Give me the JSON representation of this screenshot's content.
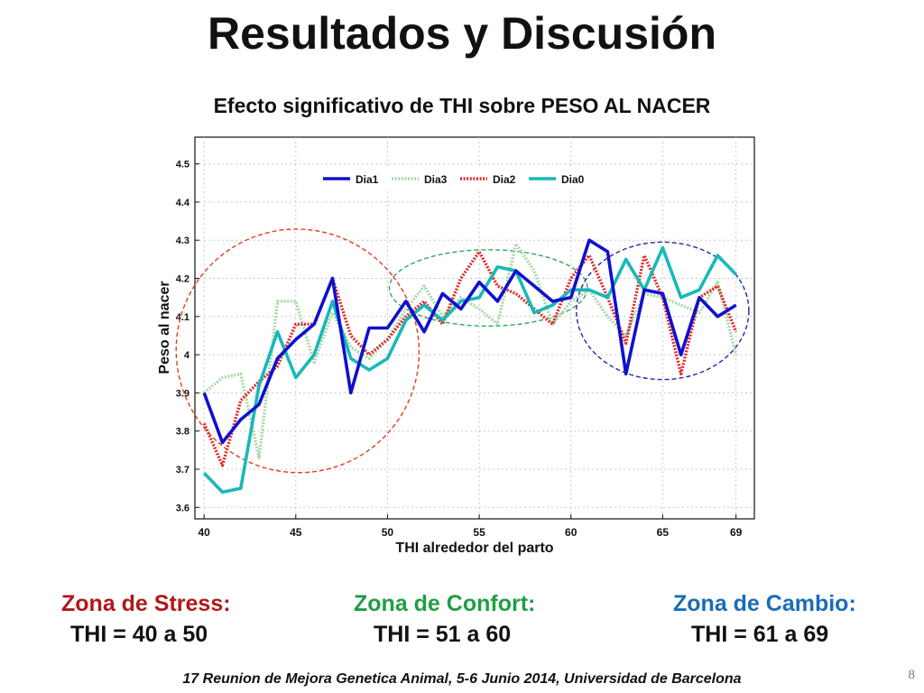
{
  "slide": {
    "title": "Resultados y Discusión",
    "subtitle": "Efecto  significativo de THI sobre PESO AL NACER",
    "footer": "17 Reunion de Mejora Genetica Animal, 5-6 Junio 2014, Universidad de Barcelona",
    "page_number": "8"
  },
  "zones": [
    {
      "name": "Zona de Stress:",
      "range": "THI = 40 a 50",
      "color": "#b01818"
    },
    {
      "name": "Zona de Confort:",
      "range": "THI = 51 a 60",
      "color": "#1f9e44"
    },
    {
      "name": "Zona de Cambio:",
      "range": "THI = 61 a 69",
      "color": "#1a6cb8"
    }
  ],
  "chart_data": {
    "type": "line",
    "xlabel": "THI alrededor del parto",
    "ylabel": "Peso al nacer",
    "xlim": [
      39.5,
      70
    ],
    "ylim": [
      3.57,
      4.57
    ],
    "x_ticks": [
      40,
      45,
      50,
      55,
      60,
      65,
      69
    ],
    "y_ticks": [
      3.6,
      3.7,
      3.8,
      3.9,
      4,
      4.1,
      4.2,
      4.3,
      4.4,
      4.5
    ],
    "y_tick_labels": [
      "3.6",
      "3.7",
      "3.8",
      "3.9",
      "4",
      "4.1",
      "4.2",
      "4.3",
      "4.4",
      "4.5"
    ],
    "grid": true,
    "legend_position": "top",
    "x": [
      40,
      41,
      42,
      43,
      44,
      45,
      46,
      47,
      48,
      49,
      50,
      51,
      52,
      53,
      54,
      55,
      56,
      57,
      58,
      59,
      60,
      61,
      62,
      63,
      64,
      65,
      66,
      67,
      68,
      69
    ],
    "series": [
      {
        "name": "Dia1",
        "color": "#1010cc",
        "style": "solid",
        "values": [
          3.9,
          3.77,
          3.83,
          3.87,
          3.99,
          4.04,
          4.08,
          4.2,
          3.9,
          4.07,
          4.07,
          4.14,
          4.06,
          4.16,
          4.12,
          4.19,
          4.14,
          4.22,
          4.18,
          4.14,
          4.15,
          4.3,
          4.27,
          3.95,
          4.17,
          4.16,
          4.0,
          4.15,
          4.1,
          4.13
        ]
      },
      {
        "name": "Dia3",
        "color": "#a9d8a9",
        "style": "dotted",
        "values": [
          3.9,
          3.94,
          3.95,
          3.73,
          4.14,
          4.14,
          3.98,
          4.11,
          4.02,
          3.99,
          4.04,
          4.12,
          4.18,
          4.1,
          4.15,
          4.12,
          4.08,
          4.29,
          4.22,
          4.08,
          4.14,
          4.17,
          4.1,
          4.05,
          4.16,
          4.15,
          4.13,
          4.11,
          4.19,
          4.0
        ]
      },
      {
        "name": "Dia2",
        "color": "#e02828",
        "style": "dotted",
        "values": [
          3.82,
          3.71,
          3.88,
          3.93,
          3.97,
          4.08,
          4.08,
          4.2,
          4.05,
          4.0,
          4.04,
          4.1,
          4.14,
          4.08,
          4.2,
          4.27,
          4.18,
          4.16,
          4.12,
          4.08,
          4.2,
          4.26,
          4.15,
          4.03,
          4.26,
          4.15,
          3.95,
          4.15,
          4.18,
          4.06
        ]
      },
      {
        "name": "Dia0",
        "color": "#19b8b8",
        "style": "solid",
        "values": [
          3.69,
          3.64,
          3.65,
          3.92,
          4.06,
          3.94,
          4.0,
          4.14,
          3.99,
          3.96,
          3.99,
          4.09,
          4.13,
          4.09,
          4.14,
          4.15,
          4.23,
          4.22,
          4.11,
          4.13,
          4.17,
          4.17,
          4.15,
          4.25,
          4.17,
          4.28,
          4.15,
          4.17,
          4.26,
          4.21
        ]
      }
    ],
    "annotations": [
      {
        "shape": "ellipse",
        "color": "#e04020",
        "center": [
          45.1,
          4.01
        ],
        "radii": [
          6.6,
          0.32
        ],
        "rotation": -38
      },
      {
        "shape": "ellipse",
        "color": "#2ca85a",
        "center": [
          55.5,
          4.175
        ],
        "radii": [
          5.4,
          0.1
        ],
        "rotation": 0
      },
      {
        "shape": "ellipse",
        "color": "#1a2aaa",
        "center": [
          65.0,
          4.115
        ],
        "radii": [
          4.7,
          0.18
        ],
        "rotation": 0
      }
    ]
  }
}
